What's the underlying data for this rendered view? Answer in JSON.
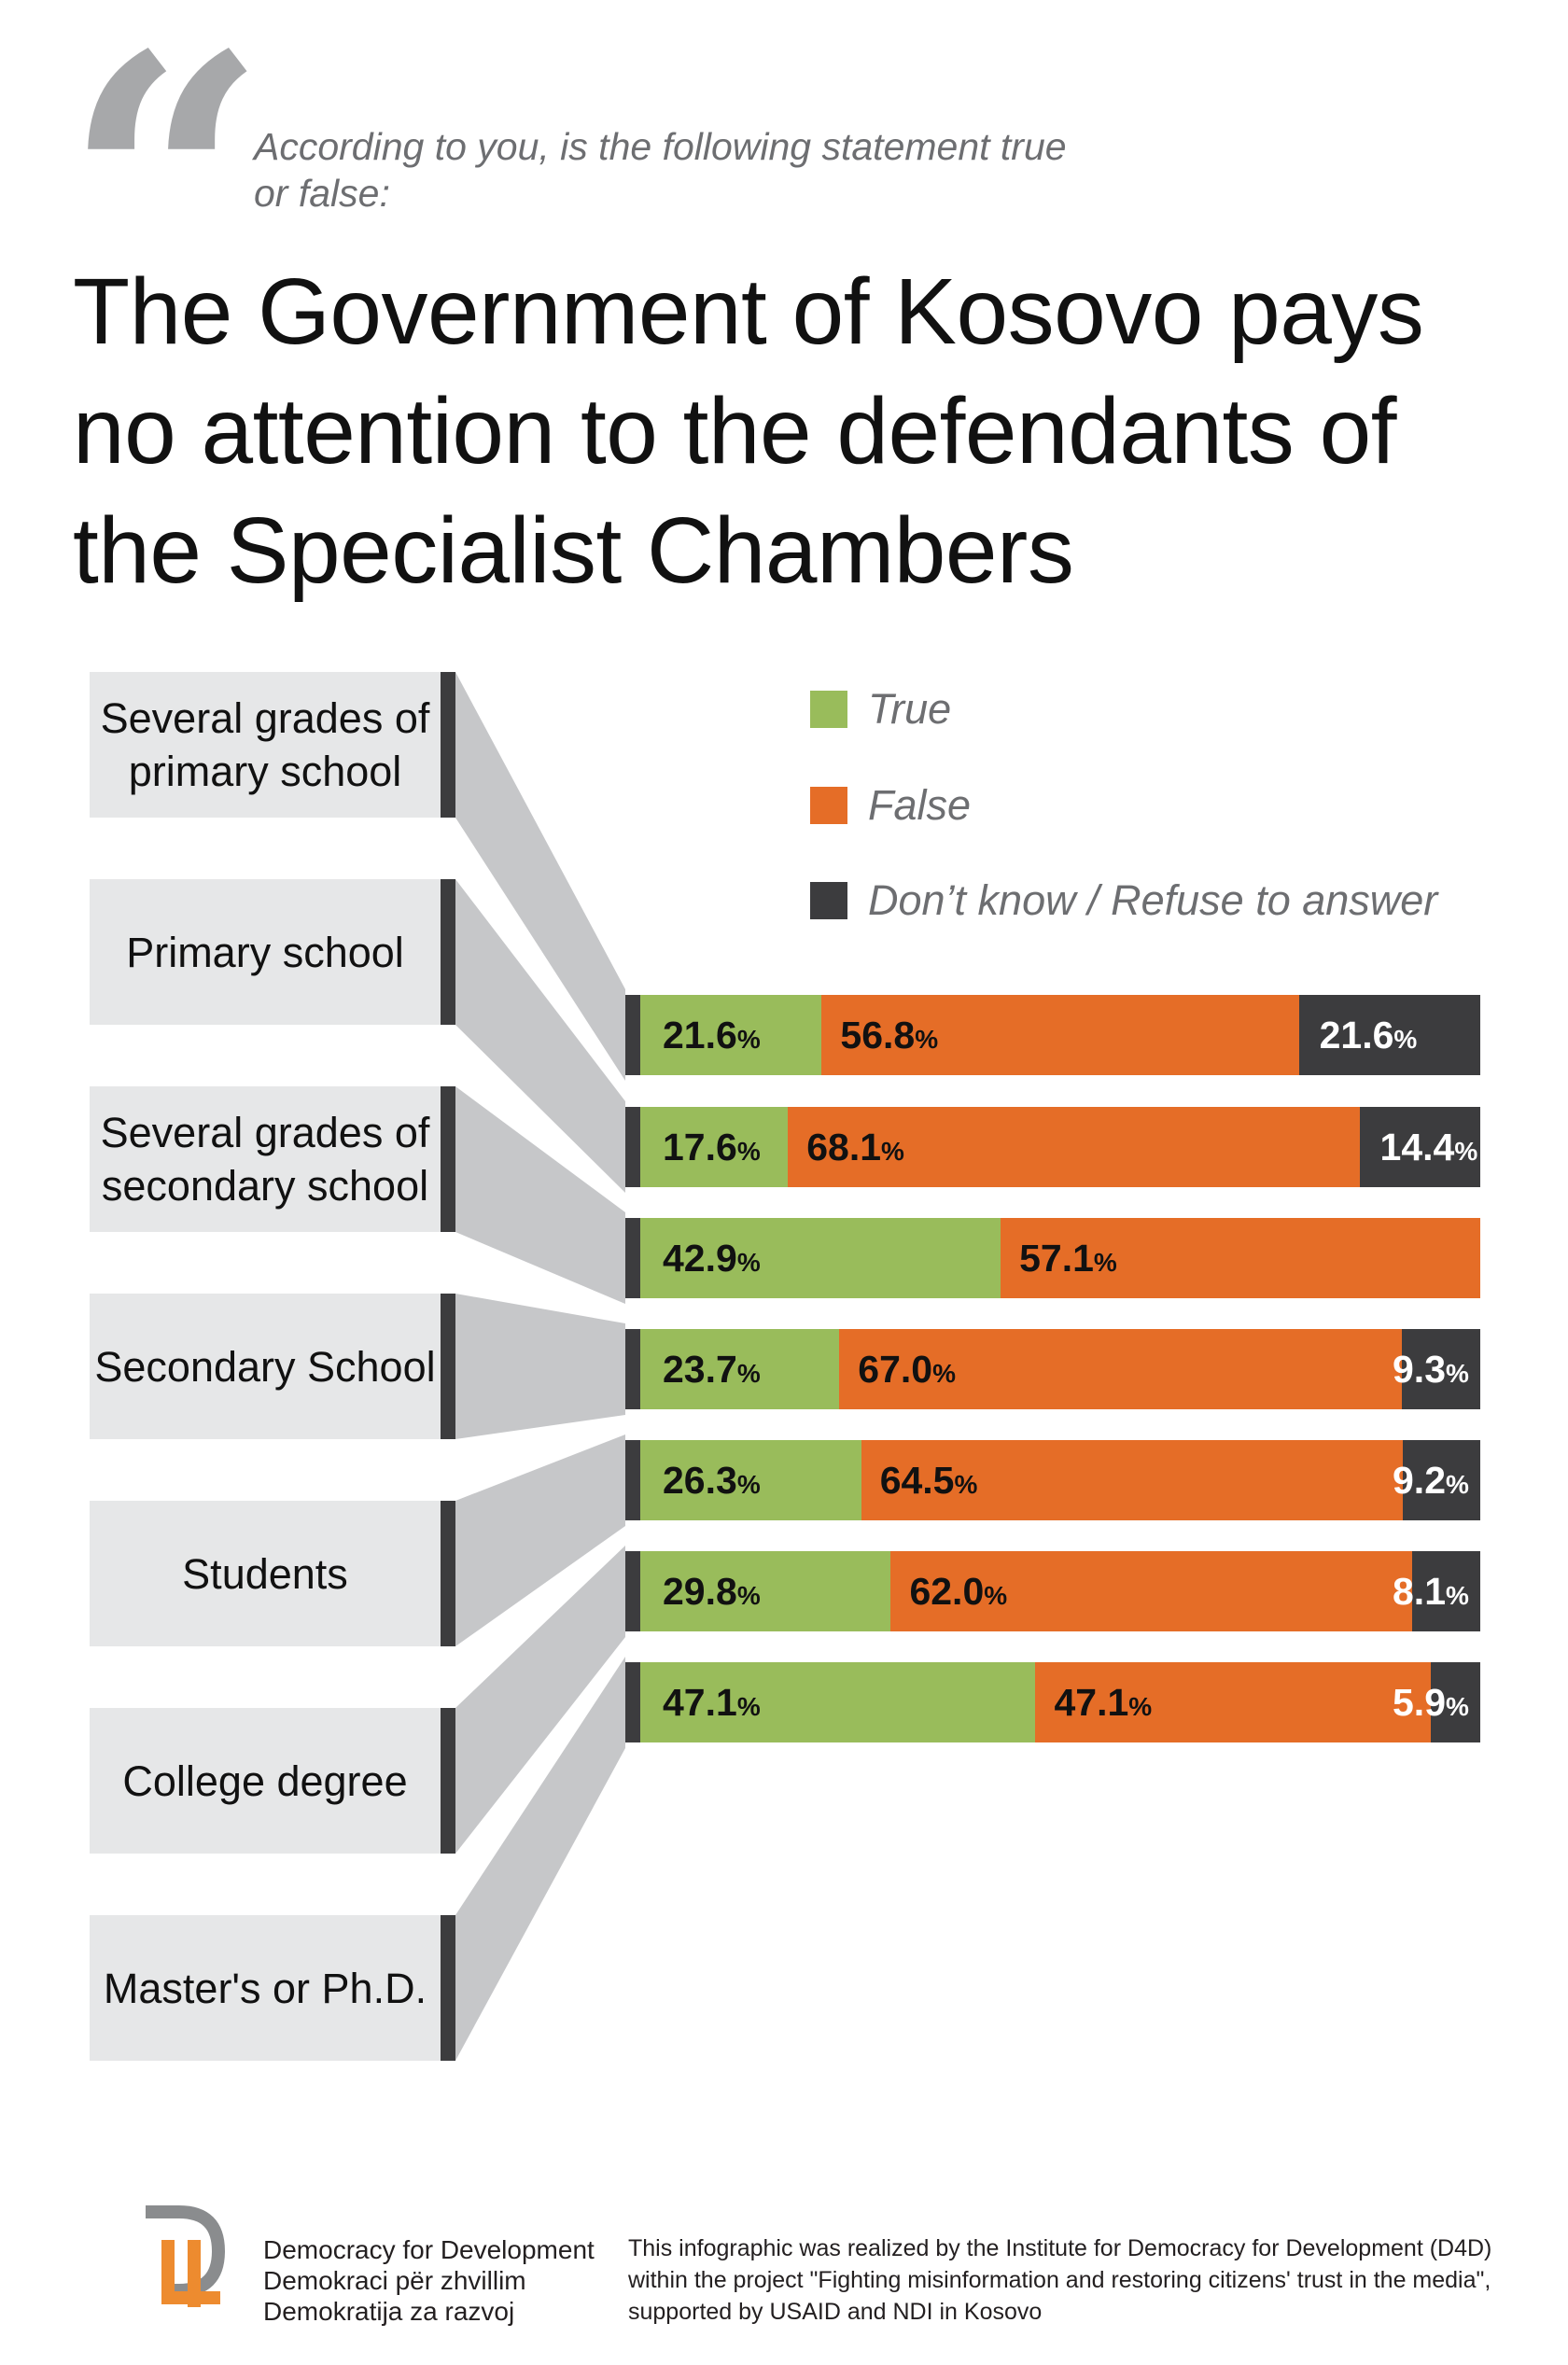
{
  "header": {
    "quote_glyph": "“",
    "question": "According to you, is the following statement true or false:",
    "title": "The Government of Kosovo pays no attention to the defendants of the Specialist Chambers"
  },
  "colors": {
    "true": "#99bc5b",
    "false": "#e56d27",
    "dont_know": "#3c3c3e",
    "connector": "#c6c7c9"
  },
  "chart_data": {
    "type": "bar",
    "orientation": "horizontal",
    "stacked": true,
    "normalized": true,
    "title": "The Government of Kosovo pays no attention to the defendants of the Specialist Chambers",
    "subtitle": "According to you, is the following statement true or false:",
    "unit": "%",
    "legend_position": "top-right",
    "categories": [
      "Several grades of primary school",
      "Primary school",
      "Several grades of secondary school",
      "Secondary School",
      "Students",
      "College degree",
      "Master's or Ph.D."
    ],
    "series": [
      {
        "name": "True",
        "key": "true",
        "values": [
          21.6,
          17.6,
          42.9,
          23.7,
          26.3,
          29.8,
          47.1
        ]
      },
      {
        "name": "False",
        "key": "false",
        "values": [
          56.8,
          68.1,
          57.1,
          67.0,
          64.5,
          62.0,
          47.1
        ]
      },
      {
        "name": "Don’t know / Refuse to answer",
        "key": "dont_know",
        "values": [
          21.6,
          14.4,
          0,
          9.3,
          9.2,
          8.1,
          5.9
        ]
      }
    ]
  },
  "footer": {
    "org_names": [
      "Democracy for Development",
      "Demokraci për zhvillim",
      "Demokratija za razvoj"
    ],
    "credit": "This infographic was realized by the Institute for Democracy for Development (D4D) within the project \"Fighting misinformation and restoring citizens' trust in the media\", supported by USAID and NDI in Kosovo"
  }
}
